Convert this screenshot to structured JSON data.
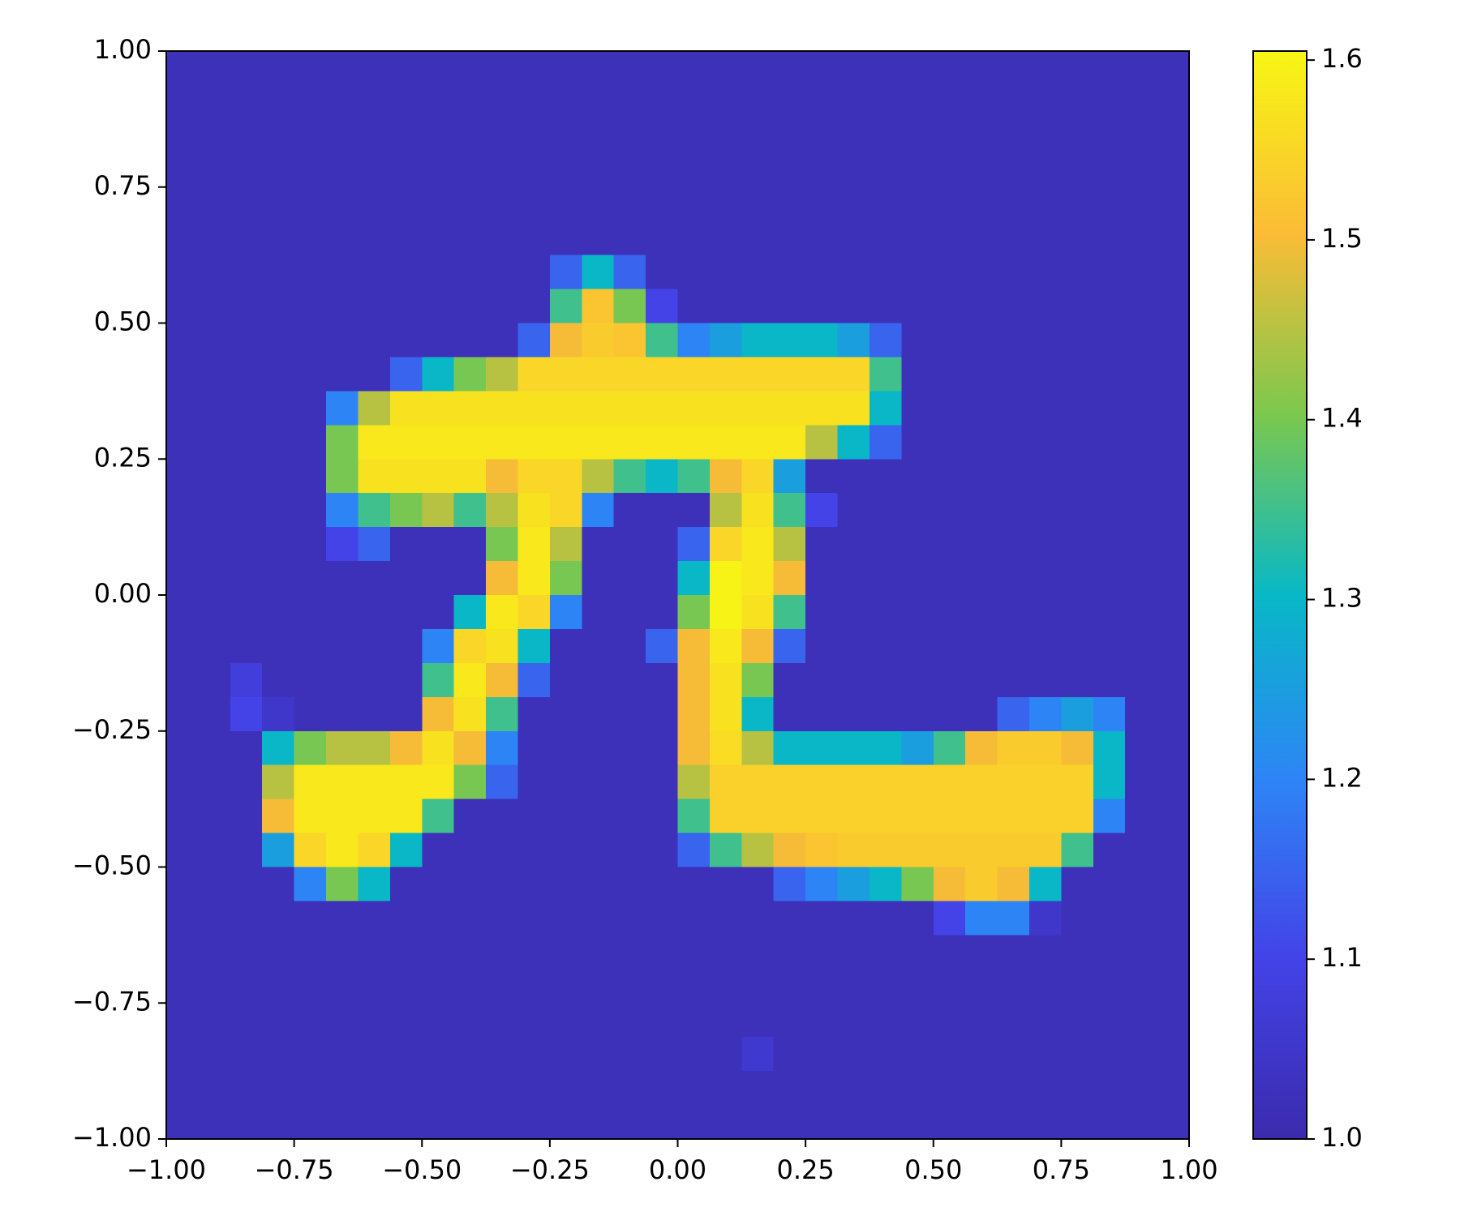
{
  "chart_data": {
    "type": "heatmap",
    "xlim": [
      -1,
      1
    ],
    "ylim": [
      -1,
      1
    ],
    "zlim": [
      1.0,
      1.605
    ],
    "xticks": [
      {
        "value": -1,
        "label": "−1.00"
      },
      {
        "value": -0.75,
        "label": "−0.75"
      },
      {
        "value": -0.5,
        "label": "−0.50"
      },
      {
        "value": -0.25,
        "label": "−0.25"
      },
      {
        "value": 0,
        "label": "0.00"
      },
      {
        "value": 0.25,
        "label": "0.25"
      },
      {
        "value": 0.5,
        "label": "0.50"
      },
      {
        "value": 0.75,
        "label": "0.75"
      },
      {
        "value": 1,
        "label": "1.00"
      }
    ],
    "yticks": [
      {
        "value": -1,
        "label": "−1.00"
      },
      {
        "value": -0.75,
        "label": "−0.75"
      },
      {
        "value": -0.5,
        "label": "−0.50"
      },
      {
        "value": -0.25,
        "label": "−0.25"
      },
      {
        "value": 0,
        "label": "0.00"
      },
      {
        "value": 0.25,
        "label": "0.25"
      },
      {
        "value": 0.5,
        "label": "0.50"
      },
      {
        "value": 0.75,
        "label": "0.75"
      },
      {
        "value": 1,
        "label": "1.00"
      }
    ],
    "colorbar_ticks": [
      {
        "value": 1,
        "label": "1.0"
      },
      1.1,
      1.2,
      1.3,
      1.4,
      1.5,
      1.6
    ],
    "colormap": [
      "#3b2bad",
      "#4343e8",
      "#2d86f5",
      "#08b8c6",
      "#7cc84e",
      "#fbbc36",
      "#f7f614"
    ],
    "z": [
      [
        1.02,
        1.02,
        1.02,
        1.02,
        1.02,
        1.02,
        1.02,
        1.02,
        1.02,
        1.02,
        1.02,
        1.02,
        1.02,
        1.02,
        1.02,
        1.02,
        1.02,
        1.02,
        1.02,
        1.02,
        1.02,
        1.02,
        1.02,
        1.02,
        1.02,
        1.02,
        1.02,
        1.02,
        1.02,
        1.02,
        1.02,
        1.02
      ],
      [
        1.02,
        1.02,
        1.02,
        1.02,
        1.02,
        1.02,
        1.02,
        1.02,
        1.02,
        1.02,
        1.02,
        1.02,
        1.02,
        1.02,
        1.02,
        1.02,
        1.02,
        1.02,
        1.02,
        1.02,
        1.02,
        1.02,
        1.02,
        1.02,
        1.02,
        1.02,
        1.02,
        1.02,
        1.02,
        1.02,
        1.02,
        1.02
      ],
      [
        1.02,
        1.02,
        1.02,
        1.02,
        1.02,
        1.02,
        1.02,
        1.02,
        1.02,
        1.02,
        1.02,
        1.02,
        1.02,
        1.02,
        1.02,
        1.02,
        1.02,
        1.02,
        1.02,
        1.02,
        1.02,
        1.02,
        1.02,
        1.02,
        1.02,
        1.02,
        1.02,
        1.02,
        1.02,
        1.02,
        1.02,
        1.02
      ],
      [
        1.02,
        1.02,
        1.02,
        1.02,
        1.02,
        1.02,
        1.02,
        1.02,
        1.02,
        1.02,
        1.02,
        1.02,
        1.02,
        1.02,
        1.02,
        1.02,
        1.02,
        1.02,
        1.02,
        1.02,
        1.02,
        1.02,
        1.02,
        1.02,
        1.02,
        1.02,
        1.02,
        1.02,
        1.02,
        1.02,
        1.02,
        1.02
      ],
      [
        1.02,
        1.02,
        1.02,
        1.02,
        1.02,
        1.02,
        1.02,
        1.02,
        1.02,
        1.02,
        1.02,
        1.02,
        1.02,
        1.02,
        1.02,
        1.02,
        1.02,
        1.02,
        1.02,
        1.02,
        1.02,
        1.02,
        1.02,
        1.02,
        1.02,
        1.02,
        1.02,
        1.02,
        1.02,
        1.02,
        1.02,
        1.02
      ],
      [
        1.02,
        1.02,
        1.02,
        1.02,
        1.02,
        1.02,
        1.02,
        1.02,
        1.02,
        1.02,
        1.02,
        1.02,
        1.02,
        1.02,
        1.02,
        1.02,
        1.02,
        1.02,
        1.02,
        1.02,
        1.02,
        1.02,
        1.02,
        1.02,
        1.02,
        1.02,
        1.02,
        1.02,
        1.02,
        1.02,
        1.02,
        1.02
      ],
      [
        1.02,
        1.02,
        1.02,
        1.02,
        1.02,
        1.02,
        1.02,
        1.02,
        1.02,
        1.02,
        1.02,
        1.02,
        1.15,
        1.3,
        1.15,
        1.02,
        1.02,
        1.02,
        1.02,
        1.02,
        1.02,
        1.02,
        1.02,
        1.02,
        1.02,
        1.02,
        1.02,
        1.02,
        1.02,
        1.02,
        1.02,
        1.02
      ],
      [
        1.02,
        1.02,
        1.02,
        1.02,
        1.02,
        1.02,
        1.02,
        1.02,
        1.02,
        1.02,
        1.02,
        1.02,
        1.35,
        1.52,
        1.4,
        1.1,
        1.02,
        1.02,
        1.02,
        1.02,
        1.02,
        1.02,
        1.02,
        1.02,
        1.02,
        1.02,
        1.02,
        1.02,
        1.02,
        1.02,
        1.02,
        1.02
      ],
      [
        1.02,
        1.02,
        1.02,
        1.02,
        1.02,
        1.02,
        1.02,
        1.02,
        1.02,
        1.02,
        1.02,
        1.15,
        1.5,
        1.53,
        1.52,
        1.35,
        1.2,
        1.25,
        1.3,
        1.3,
        1.3,
        1.25,
        1.15,
        1.02,
        1.02,
        1.02,
        1.02,
        1.02,
        1.02,
        1.02,
        1.02,
        1.02
      ],
      [
        1.02,
        1.02,
        1.02,
        1.02,
        1.02,
        1.02,
        1.02,
        1.15,
        1.3,
        1.4,
        1.45,
        1.55,
        1.55,
        1.55,
        1.55,
        1.55,
        1.55,
        1.55,
        1.55,
        1.55,
        1.55,
        1.55,
        1.35,
        1.02,
        1.02,
        1.02,
        1.02,
        1.02,
        1.02,
        1.02,
        1.02,
        1.02
      ],
      [
        1.02,
        1.02,
        1.02,
        1.02,
        1.02,
        1.2,
        1.45,
        1.57,
        1.57,
        1.57,
        1.57,
        1.57,
        1.57,
        1.57,
        1.57,
        1.57,
        1.57,
        1.57,
        1.57,
        1.57,
        1.57,
        1.57,
        1.3,
        1.02,
        1.02,
        1.02,
        1.02,
        1.02,
        1.02,
        1.02,
        1.02,
        1.02
      ],
      [
        1.02,
        1.02,
        1.02,
        1.02,
        1.02,
        1.4,
        1.58,
        1.58,
        1.58,
        1.58,
        1.58,
        1.58,
        1.58,
        1.58,
        1.58,
        1.58,
        1.58,
        1.58,
        1.58,
        1.58,
        1.45,
        1.3,
        1.15,
        1.02,
        1.02,
        1.02,
        1.02,
        1.02,
        1.02,
        1.02,
        1.02,
        1.02
      ],
      [
        1.02,
        1.02,
        1.02,
        1.02,
        1.02,
        1.4,
        1.57,
        1.57,
        1.57,
        1.57,
        1.5,
        1.55,
        1.55,
        1.45,
        1.35,
        1.3,
        1.35,
        1.5,
        1.55,
        1.25,
        1.02,
        1.02,
        1.02,
        1.02,
        1.02,
        1.02,
        1.02,
        1.02,
        1.02,
        1.02,
        1.02,
        1.02
      ],
      [
        1.02,
        1.02,
        1.02,
        1.02,
        1.02,
        1.2,
        1.35,
        1.4,
        1.45,
        1.35,
        1.45,
        1.57,
        1.55,
        1.2,
        1.02,
        1.02,
        1.02,
        1.45,
        1.57,
        1.35,
        1.1,
        1.02,
        1.02,
        1.02,
        1.02,
        1.02,
        1.02,
        1.02,
        1.02,
        1.02,
        1.02,
        1.02
      ],
      [
        1.02,
        1.02,
        1.02,
        1.02,
        1.02,
        1.1,
        1.15,
        1.02,
        1.02,
        1.02,
        1.4,
        1.58,
        1.45,
        1.02,
        1.02,
        1.02,
        1.15,
        1.55,
        1.58,
        1.45,
        1.02,
        1.02,
        1.02,
        1.02,
        1.02,
        1.02,
        1.02,
        1.02,
        1.02,
        1.02,
        1.02,
        1.02
      ],
      [
        1.02,
        1.02,
        1.02,
        1.02,
        1.02,
        1.02,
        1.02,
        1.02,
        1.02,
        1.02,
        1.5,
        1.58,
        1.4,
        1.02,
        1.02,
        1.02,
        1.3,
        1.6,
        1.58,
        1.5,
        1.02,
        1.02,
        1.02,
        1.02,
        1.02,
        1.02,
        1.02,
        1.02,
        1.02,
        1.02,
        1.02,
        1.02
      ],
      [
        1.02,
        1.02,
        1.02,
        1.02,
        1.02,
        1.02,
        1.02,
        1.02,
        1.02,
        1.3,
        1.58,
        1.55,
        1.2,
        1.02,
        1.02,
        1.02,
        1.4,
        1.6,
        1.57,
        1.35,
        1.02,
        1.02,
        1.02,
        1.02,
        1.02,
        1.02,
        1.02,
        1.02,
        1.02,
        1.02,
        1.02,
        1.02
      ],
      [
        1.02,
        1.02,
        1.02,
        1.02,
        1.02,
        1.02,
        1.02,
        1.02,
        1.2,
        1.55,
        1.57,
        1.3,
        1.02,
        1.02,
        1.02,
        1.15,
        1.5,
        1.58,
        1.5,
        1.15,
        1.02,
        1.02,
        1.02,
        1.02,
        1.02,
        1.02,
        1.02,
        1.02,
        1.02,
        1.02,
        1.02,
        1.02
      ],
      [
        1.02,
        1.02,
        1.08,
        1.02,
        1.02,
        1.02,
        1.02,
        1.02,
        1.35,
        1.58,
        1.5,
        1.15,
        1.02,
        1.02,
        1.02,
        1.02,
        1.5,
        1.57,
        1.4,
        1.02,
        1.02,
        1.02,
        1.02,
        1.02,
        1.02,
        1.02,
        1.02,
        1.02,
        1.02,
        1.02,
        1.02,
        1.02
      ],
      [
        1.02,
        1.02,
        1.1,
        1.05,
        1.02,
        1.02,
        1.02,
        1.02,
        1.5,
        1.57,
        1.35,
        1.02,
        1.02,
        1.02,
        1.02,
        1.02,
        1.5,
        1.57,
        1.3,
        1.02,
        1.02,
        1.02,
        1.02,
        1.02,
        1.02,
        1.02,
        1.15,
        1.2,
        1.25,
        1.2,
        1.02,
        1.02
      ],
      [
        1.02,
        1.02,
        1.02,
        1.3,
        1.4,
        1.45,
        1.45,
        1.5,
        1.57,
        1.5,
        1.2,
        1.02,
        1.02,
        1.02,
        1.02,
        1.02,
        1.5,
        1.56,
        1.45,
        1.3,
        1.3,
        1.3,
        1.3,
        1.25,
        1.35,
        1.5,
        1.53,
        1.53,
        1.5,
        1.3,
        1.02,
        1.02
      ],
      [
        1.02,
        1.02,
        1.02,
        1.45,
        1.58,
        1.58,
        1.58,
        1.58,
        1.58,
        1.4,
        1.15,
        1.02,
        1.02,
        1.02,
        1.02,
        1.02,
        1.45,
        1.54,
        1.54,
        1.54,
        1.54,
        1.54,
        1.54,
        1.54,
        1.54,
        1.54,
        1.54,
        1.54,
        1.54,
        1.3,
        1.02,
        1.02
      ],
      [
        1.02,
        1.02,
        1.02,
        1.5,
        1.58,
        1.58,
        1.58,
        1.58,
        1.35,
        1.02,
        1.02,
        1.02,
        1.02,
        1.02,
        1.02,
        1.02,
        1.35,
        1.54,
        1.54,
        1.54,
        1.54,
        1.54,
        1.54,
        1.54,
        1.54,
        1.54,
        1.54,
        1.54,
        1.54,
        1.2,
        1.02,
        1.02
      ],
      [
        1.02,
        1.02,
        1.02,
        1.25,
        1.55,
        1.58,
        1.55,
        1.3,
        1.02,
        1.02,
        1.02,
        1.02,
        1.02,
        1.02,
        1.02,
        1.02,
        1.15,
        1.35,
        1.45,
        1.5,
        1.52,
        1.53,
        1.53,
        1.53,
        1.53,
        1.53,
        1.53,
        1.53,
        1.35,
        1.02,
        1.02,
        1.02
      ],
      [
        1.02,
        1.02,
        1.02,
        1.02,
        1.2,
        1.4,
        1.3,
        1.02,
        1.02,
        1.02,
        1.02,
        1.02,
        1.02,
        1.02,
        1.02,
        1.02,
        1.02,
        1.02,
        1.02,
        1.15,
        1.2,
        1.25,
        1.3,
        1.4,
        1.5,
        1.53,
        1.5,
        1.3,
        1.02,
        1.02,
        1.02,
        1.02
      ],
      [
        1.02,
        1.02,
        1.02,
        1.02,
        1.02,
        1.02,
        1.02,
        1.02,
        1.02,
        1.02,
        1.02,
        1.02,
        1.02,
        1.02,
        1.02,
        1.02,
        1.02,
        1.02,
        1.02,
        1.02,
        1.02,
        1.02,
        1.02,
        1.02,
        1.1,
        1.2,
        1.2,
        1.05,
        1.02,
        1.02,
        1.02,
        1.02
      ],
      [
        1.02,
        1.02,
        1.02,
        1.02,
        1.02,
        1.02,
        1.02,
        1.02,
        1.02,
        1.02,
        1.02,
        1.02,
        1.02,
        1.02,
        1.02,
        1.02,
        1.02,
        1.02,
        1.02,
        1.02,
        1.02,
        1.02,
        1.02,
        1.02,
        1.02,
        1.02,
        1.02,
        1.02,
        1.02,
        1.02,
        1.02,
        1.02
      ],
      [
        1.02,
        1.02,
        1.02,
        1.02,
        1.02,
        1.02,
        1.02,
        1.02,
        1.02,
        1.02,
        1.02,
        1.02,
        1.02,
        1.02,
        1.02,
        1.02,
        1.02,
        1.02,
        1.02,
        1.02,
        1.02,
        1.02,
        1.02,
        1.02,
        1.02,
        1.02,
        1.02,
        1.02,
        1.02,
        1.02,
        1.02,
        1.02
      ],
      [
        1.02,
        1.02,
        1.02,
        1.02,
        1.02,
        1.02,
        1.02,
        1.02,
        1.02,
        1.02,
        1.02,
        1.02,
        1.02,
        1.02,
        1.02,
        1.02,
        1.02,
        1.02,
        1.02,
        1.02,
        1.02,
        1.02,
        1.02,
        1.02,
        1.02,
        1.02,
        1.02,
        1.02,
        1.02,
        1.02,
        1.02,
        1.02
      ],
      [
        1.02,
        1.02,
        1.02,
        1.02,
        1.02,
        1.02,
        1.02,
        1.02,
        1.02,
        1.02,
        1.02,
        1.02,
        1.02,
        1.02,
        1.02,
        1.02,
        1.02,
        1.02,
        1.06,
        1.02,
        1.02,
        1.02,
        1.02,
        1.02,
        1.02,
        1.02,
        1.02,
        1.02,
        1.02,
        1.02,
        1.02,
        1.02
      ],
      [
        1.02,
        1.02,
        1.02,
        1.02,
        1.02,
        1.02,
        1.02,
        1.02,
        1.02,
        1.02,
        1.02,
        1.02,
        1.02,
        1.02,
        1.02,
        1.02,
        1.02,
        1.02,
        1.02,
        1.02,
        1.02,
        1.02,
        1.02,
        1.02,
        1.02,
        1.02,
        1.02,
        1.02,
        1.02,
        1.02,
        1.02,
        1.02
      ],
      [
        1.02,
        1.02,
        1.02,
        1.02,
        1.02,
        1.02,
        1.02,
        1.02,
        1.02,
        1.02,
        1.02,
        1.02,
        1.02,
        1.02,
        1.02,
        1.02,
        1.02,
        1.02,
        1.02,
        1.02,
        1.02,
        1.02,
        1.02,
        1.02,
        1.02,
        1.02,
        1.02,
        1.02,
        1.02,
        1.02,
        1.02,
        1.02
      ]
    ]
  }
}
